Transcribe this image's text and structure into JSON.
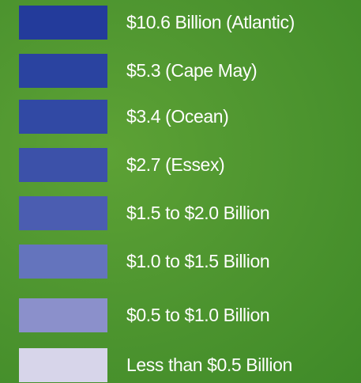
{
  "legend": {
    "items": [
      {
        "label": "$10.6 Billion (Atlantic)",
        "color": "#233b9b"
      },
      {
        "label": "$5.3 (Cape May)",
        "color": "#2a43a0"
      },
      {
        "label": "$3.4 (Ocean)",
        "color": "#3149a4"
      },
      {
        "label": "$2.7 (Essex)",
        "color": "#3c51a9"
      },
      {
        "label": "$1.5 to $2.0 Billion",
        "color": "#4b5db1"
      },
      {
        "label": "$1.0 to $1.5 Billion",
        "color": "#6474bd"
      },
      {
        "label": "$0.5 to $1.0 Billion",
        "color": "#8b90cb"
      },
      {
        "label": "Less than $0.5 Billion",
        "color": "#d7d5ea"
      }
    ]
  }
}
